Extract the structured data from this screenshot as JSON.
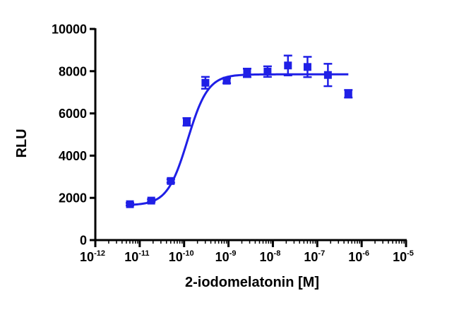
{
  "chart_data": {
    "type": "scatter",
    "title": "",
    "xlabel": "2-iodomelatonin [M]",
    "ylabel": "RLU",
    "xscale": "log10",
    "xlim_exponent": [
      -12,
      -5
    ],
    "ylim": [
      0,
      10000
    ],
    "y_ticks": [
      0,
      2000,
      4000,
      6000,
      8000,
      10000
    ],
    "y_tick_labels": [
      "0",
      "2000",
      "4000",
      "6000",
      "8000",
      "10000"
    ],
    "x_tick_exponents": [
      -12,
      -11,
      -10,
      -9,
      -8,
      -7,
      -6,
      -5
    ],
    "x_tick_base": "10",
    "x_tick_exponent_labels": [
      "-12",
      "-11",
      "-10",
      "-9",
      "-8",
      "-7",
      "-6",
      "-5"
    ],
    "grid": false,
    "legend": "none",
    "color": "#1F1FE6",
    "series": [
      {
        "name": "2-iodomelatonin",
        "marker": "square",
        "x_exponent": [
          -11.22,
          -10.74,
          -10.3,
          -9.94,
          -9.52,
          -9.04,
          -8.58,
          -8.12,
          -7.66,
          -7.22,
          -6.76,
          -6.3
        ],
        "y": [
          1700,
          1870,
          2800,
          5600,
          7450,
          7550,
          7920,
          7980,
          8270,
          8200,
          7820,
          6930
        ],
        "y_err": [
          60,
          60,
          80,
          180,
          280,
          120,
          200,
          250,
          470,
          480,
          530,
          180
        ]
      }
    ],
    "fit": {
      "type": "sigmoidal dose-response",
      "bottom": 1650,
      "top": 7850,
      "logEC50": -9.92,
      "hill_slope": 1.9,
      "x_exponent_range": [
        -11.22,
        -6.3
      ]
    }
  }
}
